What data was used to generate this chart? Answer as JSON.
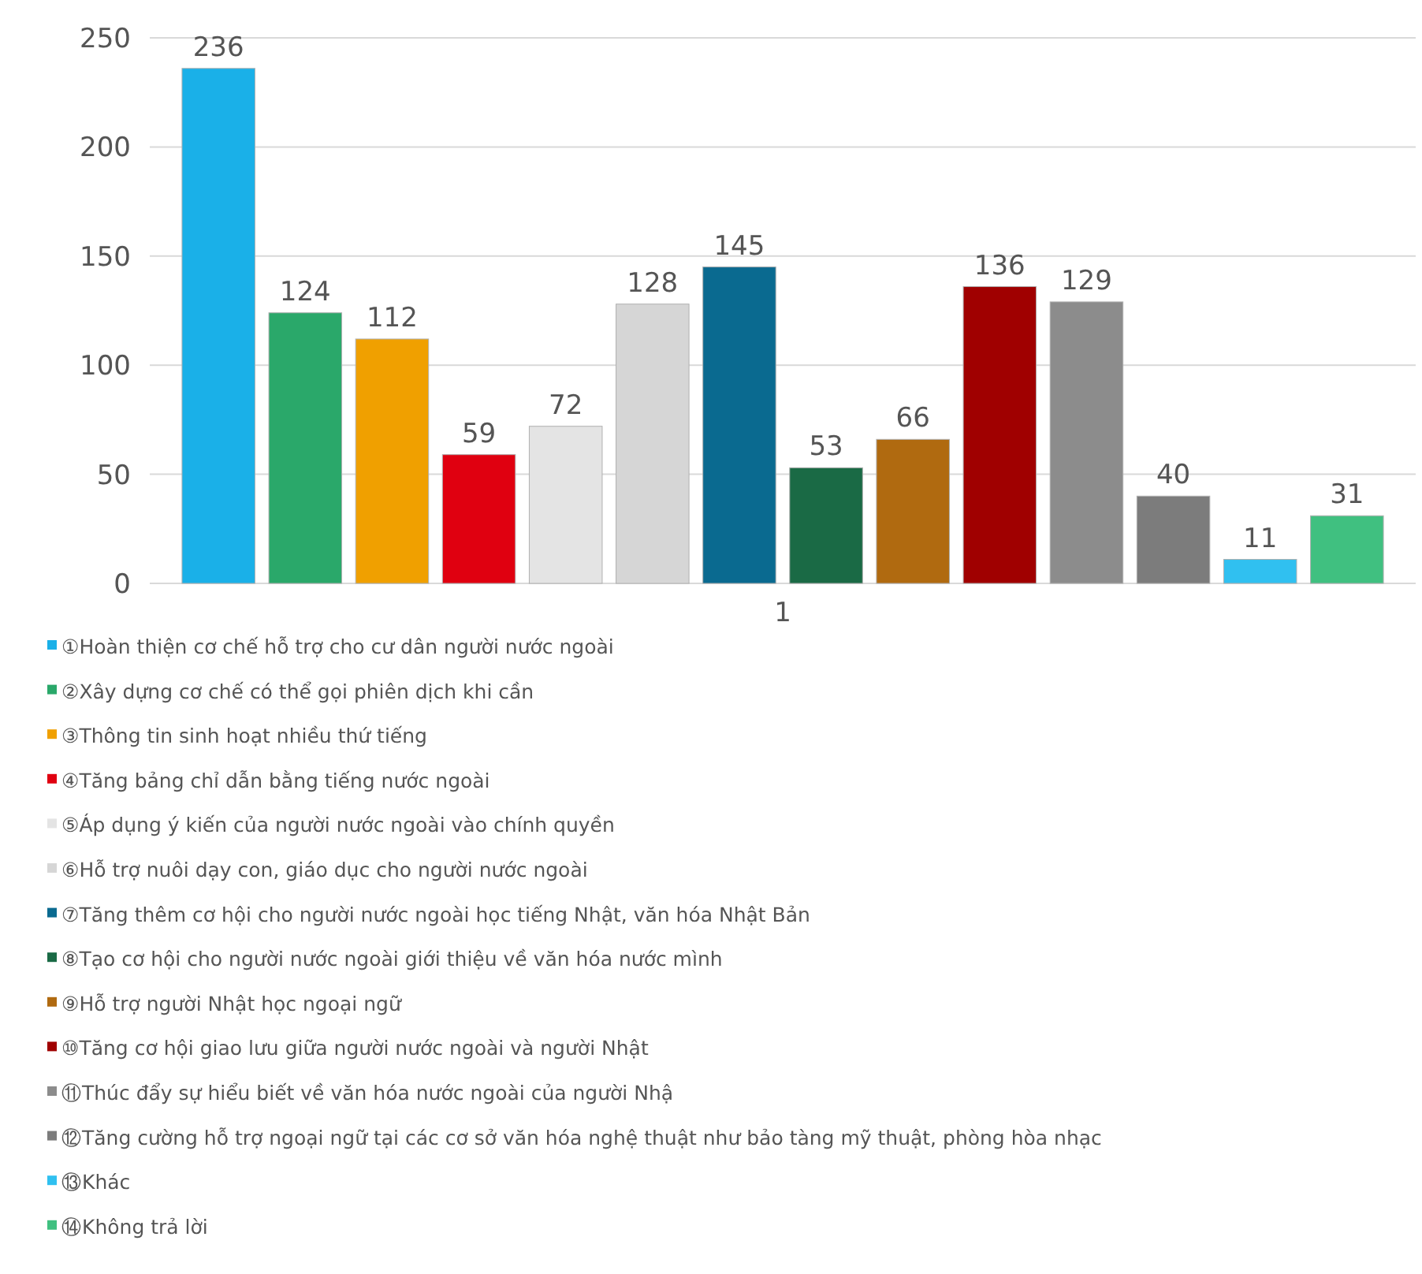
{
  "chart_data": {
    "type": "bar",
    "categories": [
      "1"
    ],
    "series": [
      {
        "name": "①Hoàn thiện cơ chế hỗ trợ cho cư dân người nước ngoài",
        "color": "#1ab0e8",
        "values": [
          236
        ]
      },
      {
        "name": "②Xây dựng cơ chế có thể gọi phiên dịch khi cần",
        "color": "#2aa86a",
        "values": [
          124
        ]
      },
      {
        "name": "③Thông tin sinh hoạt nhiều thứ tiếng",
        "color": "#f0a000",
        "values": [
          112
        ]
      },
      {
        "name": "④Tăng bảng chỉ dẫn bằng tiếng nước ngoài",
        "color": "#e00010",
        "values": [
          59
        ]
      },
      {
        "name": "⑤Áp dụng ý kiến của người nước ngoài vào chính quyền",
        "color": "#e4e4e4",
        "values": [
          72
        ]
      },
      {
        "name": "⑥Hỗ trợ nuôi dạy con, giáo dục cho người nước ngoài",
        "color": "#d6d6d6",
        "values": [
          128
        ]
      },
      {
        "name": "⑦Tăng thêm cơ hội cho người nước ngoài học tiếng Nhật, văn hóa Nhật Bản",
        "color": "#0a6a90",
        "values": [
          145
        ]
      },
      {
        "name": "⑧Tạo cơ hội cho người nước ngoài giới thiệu về văn hóa nước mình",
        "color": "#1a6a45",
        "values": [
          53
        ]
      },
      {
        "name": "⑨Hỗ trợ người Nhật học ngoại ngữ",
        "color": "#b06a10",
        "values": [
          66
        ]
      },
      {
        "name": "⑩Tăng cơ hội giao lưu giữa người nước ngoài và người Nhật",
        "color": "#a00000",
        "values": [
          136
        ]
      },
      {
        "name": "⑪Thúc đẩy sự hiểu biết về văn hóa nước ngoài của người Nhậ",
        "color": "#8c8c8c",
        "values": [
          129
        ]
      },
      {
        "name": "⑫Tăng cường hỗ trợ ngoại ngữ tại các cơ sở văn hóa nghệ thuật như bảo tàng mỹ thuật, phòng hòa nhạc",
        "color": "#7c7c7c",
        "values": [
          40
        ]
      },
      {
        "name": "⑬Khác",
        "color": "#30c0f0",
        "values": [
          11
        ]
      },
      {
        "name": "⑭Không trả lời",
        "color": "#40c080",
        "values": [
          31
        ]
      }
    ],
    "ylim": [
      0,
      250
    ],
    "yticks": [
      0,
      50,
      100,
      150,
      200,
      250
    ],
    "grid": "y",
    "legend": "bottom",
    "data_labels": true
  }
}
